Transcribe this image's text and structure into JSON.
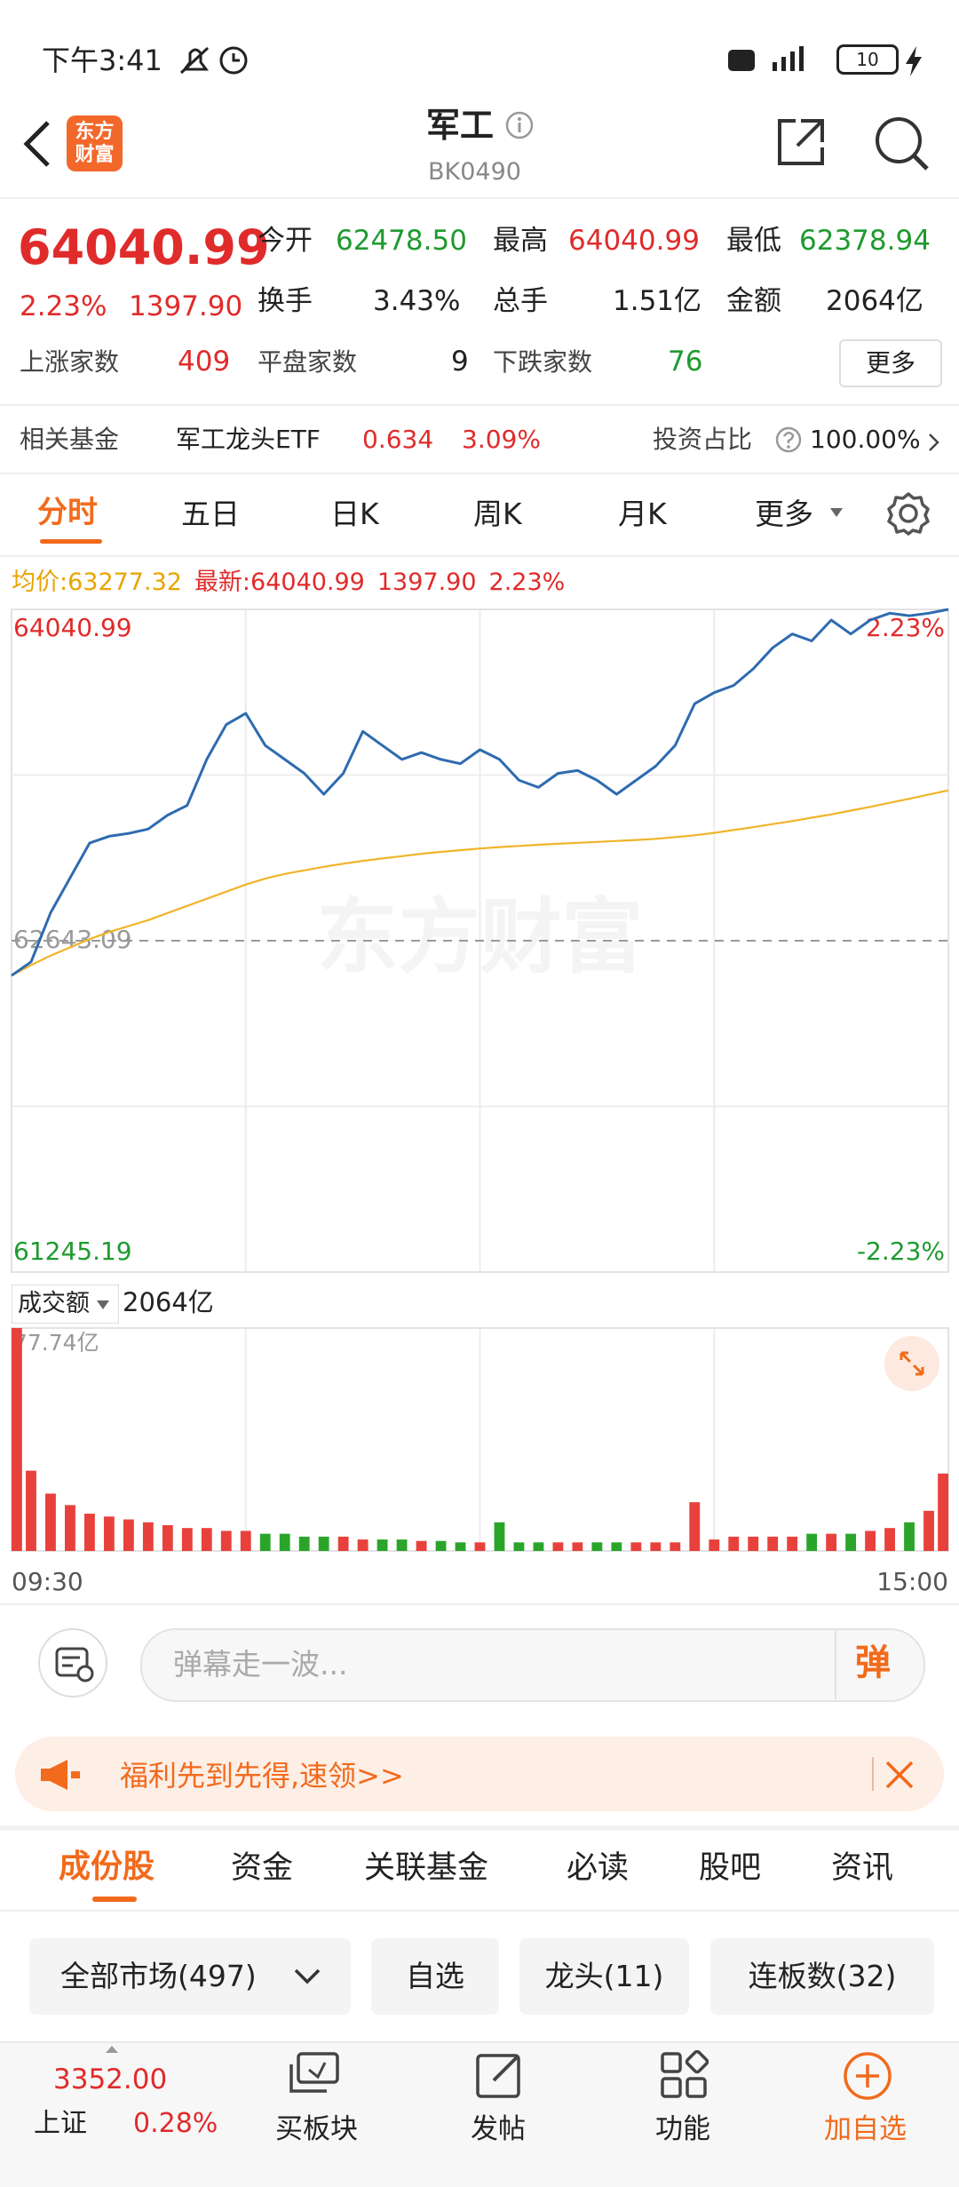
{
  "status_bar": {
    "time": "下午3:41",
    "battery": "10"
  },
  "header": {
    "logo": [
      "东方",
      "财富"
    ],
    "title": "军工",
    "code": "BK0490"
  },
  "quote": {
    "price": "64040.99",
    "change_pct": "2.23%",
    "change": "1397.90",
    "stats": [
      [
        "今开",
        "62478.50"
      ],
      [
        "最高",
        "64040.99"
      ],
      [
        "最低",
        "62378.94"
      ],
      [
        "换手",
        "3.43%"
      ],
      [
        "总手",
        "1.51亿"
      ],
      [
        "金额",
        "2064亿"
      ],
      [
        "上涨家数",
        "409"
      ],
      [
        "平盘家数",
        "9"
      ],
      [
        "下跌家数",
        "76"
      ]
    ],
    "more": "更多"
  },
  "fund": {
    "label": "相关基金",
    "name": "军工龙头ETF",
    "price": "0.634",
    "change": "3.09%",
    "ratio_label": "投资占比",
    "ratio": "100.00%"
  },
  "tabs": [
    "分时",
    "五日",
    "日K",
    "周K",
    "月K",
    "更多"
  ],
  "chart_data": [
    {
      "type": "line",
      "header": [
        "均价:63277.32",
        "最新:64040.99",
        "1397.90",
        "2.23%"
      ],
      "watermark": "东方财富",
      "x": [
        0,
        5,
        10,
        15,
        20,
        25,
        30,
        35,
        40,
        45,
        50,
        55,
        60,
        65,
        70,
        75,
        80,
        85,
        90,
        95,
        100,
        105,
        110,
        115,
        120,
        125,
        130,
        135,
        140,
        145,
        150,
        155,
        160,
        165,
        170,
        175,
        180,
        185,
        190,
        195,
        200,
        205,
        210,
        215,
        220,
        225,
        230,
        235,
        240
      ],
      "xlim": [
        0,
        240
      ],
      "ylim": [
        61245.19,
        64040.99
      ],
      "yticks": [
        61245.19,
        62643.09,
        64040.99
      ],
      "y2lim": [
        -2.23,
        2.23
      ],
      "y2ticks": [
        {
          "value": -2.23,
          "label": "-2.23%"
        },
        {
          "value": 2.23,
          "label": "2.23%"
        }
      ],
      "series": [
        {
          "color": "#2e6bb0",
          "values": [
            62496,
            62554,
            62761,
            62908,
            63055,
            63084,
            63096,
            63114,
            63173,
            63214,
            63408,
            63555,
            63602,
            63467,
            63408,
            63349,
            63261,
            63349,
            63526,
            63467,
            63408,
            63437,
            63408,
            63390,
            63449,
            63408,
            63320,
            63290,
            63349,
            63361,
            63320,
            63261,
            63320,
            63379,
            63467,
            63643,
            63690,
            63720,
            63790,
            63879,
            63937,
            63908,
            63996,
            63937,
            63996,
            64025,
            64014,
            64025,
            64040.99
          ]
        },
        {
          "color": "#f0b429",
          "values": [
            62496,
            62540,
            62580,
            62615,
            62650,
            62680,
            62705,
            62730,
            62760,
            62790,
            62820,
            62850,
            62880,
            62905,
            62925,
            62940,
            62955,
            62968,
            62980,
            62990,
            63000,
            63010,
            63018,
            63025,
            63032,
            63038,
            63043,
            63048,
            63052,
            63056,
            63060,
            63064,
            63068,
            63073,
            63080,
            63088,
            63098,
            63110,
            63122,
            63135,
            63148,
            63162,
            63176,
            63192,
            63208,
            63225,
            63242,
            63260,
            63277.32
          ]
        }
      ]
    },
    {
      "type": "bar",
      "label": "成交额",
      "total": "2064亿",
      "x": [
        0,
        5,
        10,
        15,
        20,
        25,
        30,
        35,
        40,
        45,
        50,
        55,
        60,
        65,
        70,
        75,
        80,
        85,
        90,
        95,
        100,
        105,
        110,
        115,
        120,
        125,
        130,
        135,
        140,
        145,
        150,
        155,
        160,
        165,
        170,
        175,
        180,
        185,
        190,
        195,
        200,
        205,
        210,
        215,
        220,
        225,
        230,
        235,
        240
      ],
      "xlim": [
        0,
        240
      ],
      "xticks": [
        {
          "value": 0,
          "label": "09:30"
        },
        {
          "value": 240,
          "label": "15:00"
        }
      ],
      "ylim": [
        0,
        77.74
      ],
      "yticks": [
        {
          "value": 77.74,
          "label": "77.74亿"
        }
      ],
      "up_color": "#e8413c",
      "down_color": "#2aa52a",
      "values": [
        77.74,
        28,
        20,
        16,
        13,
        12,
        11,
        10,
        9,
        8,
        8,
        7,
        7,
        6,
        6,
        5,
        5,
        5,
        4,
        4,
        4,
        3.5,
        3.5,
        3,
        3,
        10,
        3,
        3,
        3,
        3,
        3,
        3,
        3,
        3,
        3,
        17,
        4,
        5,
        5,
        5,
        5,
        6,
        6,
        6,
        7,
        8,
        10,
        14,
        27
      ]
    }
  ],
  "danmu": {
    "placeholder": "弹幕走一波...",
    "button": "弹"
  },
  "banner": "福利先到先得,速领>>",
  "section_tabs": [
    "成份股",
    "资金",
    "关联基金",
    "必读",
    "股吧",
    "资讯"
  ],
  "filters": [
    "全部市场(497)",
    "自选",
    "龙头(11)",
    "连板数(32)"
  ],
  "bottom_bar": {
    "index_value": "3352.00",
    "index_name": "上证",
    "index_change": "0.28%",
    "items": [
      "买板块",
      "发帖",
      "功能",
      "加自选"
    ]
  }
}
